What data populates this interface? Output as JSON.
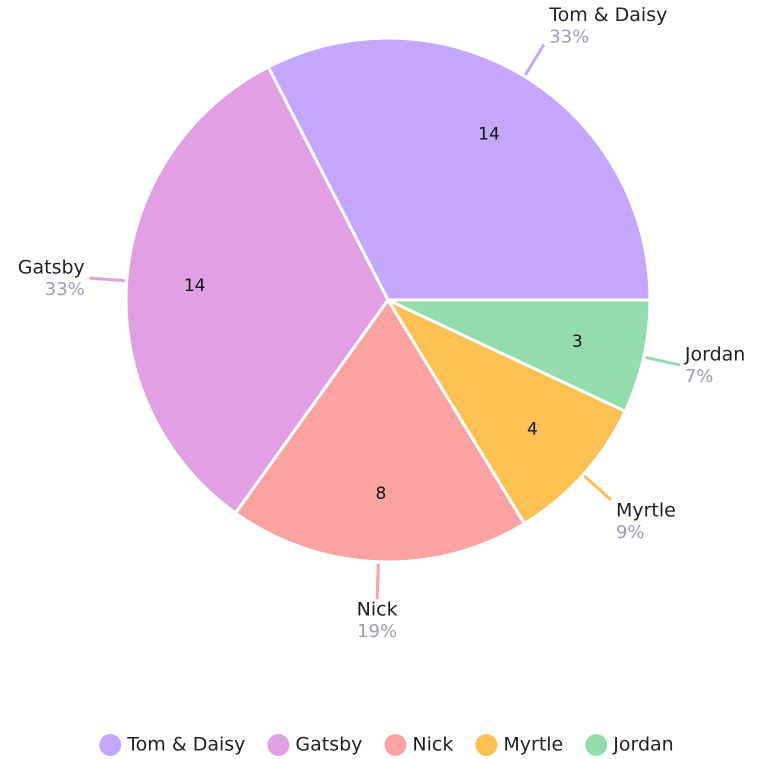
{
  "chart_data": {
    "type": "pie",
    "categories": [
      "Tom & Daisy",
      "Gatsby",
      "Nick",
      "Myrtle",
      "Jordan"
    ],
    "values": [
      14,
      14,
      8,
      4,
      3
    ],
    "percent_labels": [
      "33%",
      "33%",
      "19%",
      "9%",
      "7%"
    ],
    "colors": [
      "#c4a8ff",
      "#e1a0e4",
      "#fba3a3",
      "#fdc052",
      "#94dbad"
    ],
    "start_angle": 0,
    "direction": "counterclockwise",
    "legend": "bottom"
  }
}
